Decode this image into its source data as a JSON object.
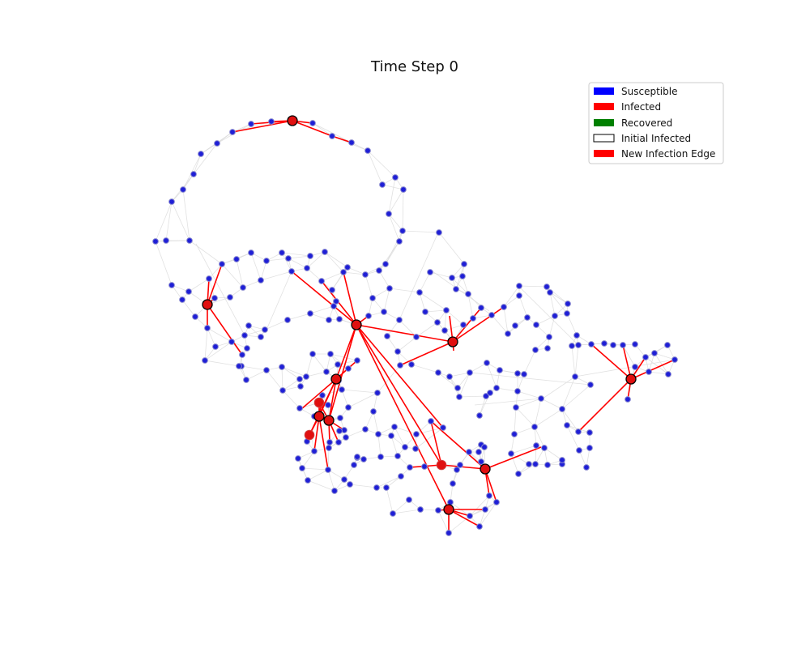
{
  "figure": {
    "title": "Time Step 0"
  },
  "legend": {
    "items": [
      {
        "label": "Susceptible",
        "color": "#0000ff",
        "style": "filled"
      },
      {
        "label": "Infected",
        "color": "#ff0000",
        "style": "filled"
      },
      {
        "label": "Recovered",
        "color": "#008000",
        "style": "filled"
      },
      {
        "label": "Initial Infected",
        "color": "#000000",
        "style": "outline"
      },
      {
        "label": "New Infection Edge",
        "color": "#ff0000",
        "style": "filled"
      }
    ]
  },
  "colors": {
    "susceptible": "#1f1fd6",
    "susceptible_edge": "#8a8ad0",
    "infected": "#e01010",
    "initial_infected_outline": "#000000",
    "background_edge": "#d9d9d9",
    "infection_edge": "#ff0000"
  },
  "network_summary": {
    "time_step": 0,
    "initial_infected_count": 10,
    "newly_infected_count": 3
  }
}
